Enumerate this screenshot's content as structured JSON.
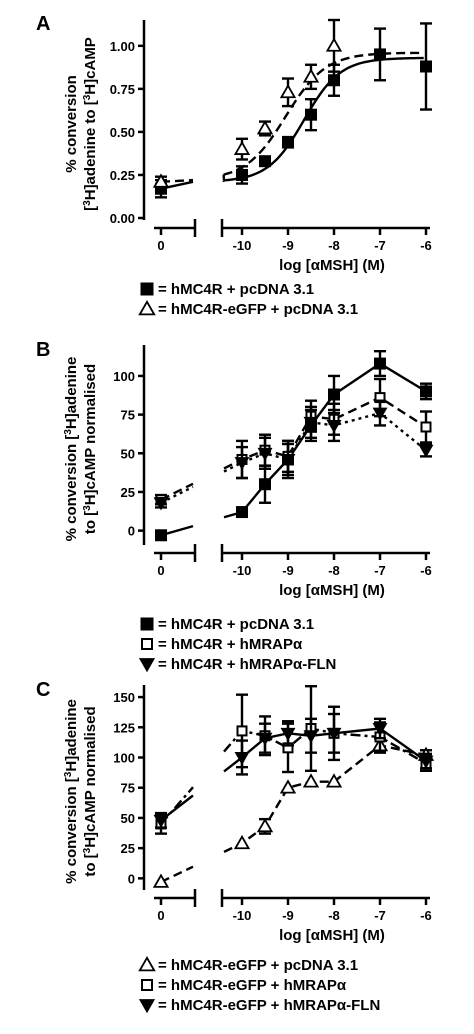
{
  "chart_data": [
    {
      "type": "line",
      "panel": "A",
      "ylabel": [
        "% conversion",
        "[3H]adenine to [3H]cAMP"
      ],
      "xlabel": "log [αMSH] (M)",
      "ylim": [
        0,
        1.15
      ],
      "yticks": [
        0.0,
        0.25,
        0.5,
        0.75,
        1.0
      ],
      "ytick_labels": [
        "0.00",
        "0.25",
        "0.50",
        "0.75",
        "1.00"
      ],
      "xticks": [
        -10,
        -9,
        -8,
        -7,
        -6
      ],
      "xtick_labels": [
        "-10",
        "-9",
        "-8",
        "-7",
        "-6"
      ],
      "zero_label": "0",
      "series": [
        {
          "name": "hMC4R + pcDNA 3.1",
          "marker": "square",
          "line": "solid",
          "zero": {
            "y": 0.17,
            "err": 0.05
          },
          "x": [
            -10,
            -9.5,
            -9,
            -8.5,
            -8,
            -7,
            -6
          ],
          "y": [
            0.25,
            0.33,
            0.44,
            0.6,
            0.8,
            0.95,
            0.88
          ],
          "err": [
            0.05,
            0.02,
            0.03,
            0.09,
            0.09,
            0.15,
            0.25
          ],
          "fit": {
            "bottom": 0.21,
            "top": 0.93,
            "ec50": -8.65,
            "hill": 1.1
          }
        },
        {
          "name": "hMC4R-eGFP + pcDNA 3.1",
          "marker": "triangle-open",
          "line": "dashed",
          "zero": {
            "y": 0.21,
            "err": 0.03
          },
          "x": [
            -10,
            -9.5,
            -9,
            -8.5,
            -8
          ],
          "y": [
            0.4,
            0.52,
            0.73,
            0.82,
            1.0
          ],
          "err": [
            0.06,
            0.04,
            0.08,
            0.07,
            0.15
          ],
          "fit": {
            "bottom": 0.22,
            "top": 0.96,
            "ec50": -9.05,
            "hill": 1.0
          }
        }
      ],
      "legend": [
        {
          "marker": "square",
          "text": "= hMC4R + pcDNA 3.1"
        },
        {
          "marker": "triangle-open",
          "text": "= hMC4R-eGFP + pcDNA 3.1"
        }
      ]
    },
    {
      "type": "line",
      "panel": "B",
      "ylabel": [
        "% conversion [3H]adenine",
        "to [3H]cAMP normalised"
      ],
      "xlabel": "log [αMSH] (M)",
      "ylim": [
        -8,
        120
      ],
      "yticks": [
        0,
        25,
        50,
        75,
        100
      ],
      "ytick_labels": [
        "0",
        "25",
        "50",
        "75",
        "100"
      ],
      "xticks": [
        -10,
        -9,
        -8,
        -7,
        -6
      ],
      "xtick_labels": [
        "-10",
        "-9",
        "-8",
        "-7",
        "-6"
      ],
      "zero_label": "0",
      "series": [
        {
          "name": "hMC4R + pcDNA 3.1",
          "marker": "square",
          "line": "solid",
          "zero": {
            "y": -3,
            "err": 0
          },
          "x": [
            -10,
            -9.5,
            -9,
            -8.5,
            -8,
            -7,
            -6
          ],
          "y": [
            12,
            30,
            46,
            68,
            88,
            108,
            90
          ],
          "err": [
            0,
            12,
            12,
            10,
            12,
            8,
            5
          ]
        },
        {
          "name": "hMC4R + hMRAPα",
          "marker": "square-open",
          "line": "dashed",
          "zero": {
            "y": 20,
            "err": 3
          },
          "x": [
            -10,
            -9.5,
            -9,
            -8.5,
            -8,
            -7,
            -6
          ],
          "y": [
            46,
            52,
            48,
            74,
            72,
            86,
            67
          ],
          "err": [
            12,
            10,
            10,
            10,
            10,
            12,
            10
          ]
        },
        {
          "name": "hMC4R + hMRAPα-FLN",
          "marker": "triangle-down",
          "line": "dotted",
          "zero": {
            "y": 18,
            "err": 3
          },
          "x": [
            -10,
            -9.5,
            -9,
            -8.5,
            -8,
            -7,
            -6
          ],
          "y": [
            44,
            50,
            46,
            70,
            68,
            76,
            52
          ],
          "err": [
            10,
            10,
            10,
            10,
            10,
            8,
            4
          ]
        }
      ],
      "legend": [
        {
          "marker": "square",
          "text": "= hMC4R + pcDNA 3.1"
        },
        {
          "marker": "square-open",
          "text": "= hMC4R + hMRAPα"
        },
        {
          "marker": "triangle-down",
          "text": "= hMC4R + hMRAPα-FLN"
        }
      ]
    },
    {
      "type": "line",
      "panel": "C",
      "ylabel": [
        "% conversion [3H]adenine",
        "to [3H]cAMP normalised"
      ],
      "xlabel": "log [αMSH] (M)",
      "ylim": [
        -8,
        160
      ],
      "yticks": [
        0,
        25,
        50,
        75,
        100,
        125,
        150
      ],
      "ytick_labels": [
        "0",
        "25",
        "50",
        "75",
        "100",
        "125",
        "150"
      ],
      "xticks": [
        -10,
        -9,
        -8,
        -7,
        -6
      ],
      "xtick_labels": [
        "-10",
        "-9",
        "-8",
        "-7",
        "-6"
      ],
      "zero_label": "0",
      "series": [
        {
          "name": "hMC4R-eGFP + pcDNA 3.1",
          "marker": "triangle-open",
          "line": "dashed",
          "zero": {
            "y": -3,
            "err": 0
          },
          "x": [
            -10,
            -9.5,
            -9,
            -8.5,
            -8,
            -7,
            -6
          ],
          "y": [
            29,
            43,
            75,
            80,
            80,
            110,
            102
          ],
          "err": [
            0,
            6,
            0,
            0,
            0,
            6,
            4
          ]
        },
        {
          "name": "hMC4R-eGFP + hMRAPα",
          "marker": "square-open",
          "line": "dash-dot",
          "zero": {
            "y": 45,
            "err": 8
          },
          "x": [
            -10,
            -9.5,
            -9,
            -8.5,
            -8,
            -7,
            -6
          ],
          "y": [
            122,
            118,
            108,
            124,
            120,
            117,
            95
          ],
          "err": [
            30,
            16,
            20,
            35,
            22,
            12,
            6
          ]
        },
        {
          "name": "hMC4R-eGFP + hMRAPα-FLN",
          "marker": "triangle-down",
          "line": "solid",
          "zero": {
            "y": 48,
            "err": 6
          },
          "x": [
            -10,
            -9.5,
            -9,
            -8.5,
            -8,
            -7,
            -6
          ],
          "y": [
            100,
            116,
            120,
            118,
            120,
            124,
            97
          ],
          "err": [
            14,
            12,
            10,
            14,
            16,
            8,
            6
          ]
        }
      ],
      "legend": [
        {
          "marker": "triangle-open",
          "text": "= hMC4R-eGFP + pcDNA 3.1"
        },
        {
          "marker": "square-open",
          "text": "= hMC4R-eGFP + hMRAPα"
        },
        {
          "marker": "triangle-down",
          "text": "= hMC4R-eGFP + hMRAPα-FLN"
        }
      ]
    }
  ]
}
